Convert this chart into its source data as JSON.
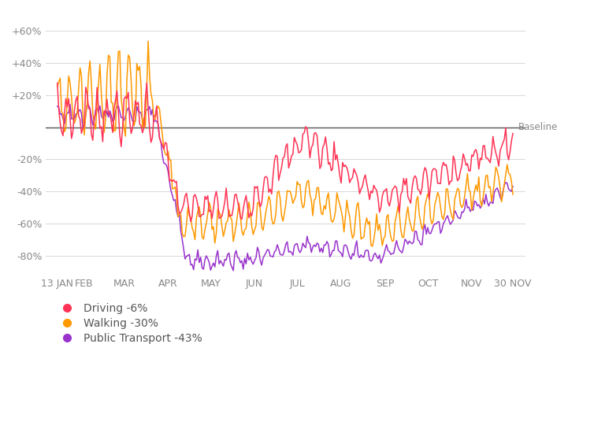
{
  "background_color": "#ffffff",
  "grid_color": "#d8d8d8",
  "baseline_color": "#555555",
  "driving_color": "#ff3355",
  "walking_color": "#ff9900",
  "transit_color": "#9933cc",
  "legend_driving": "Driving -6%",
  "legend_walking": "Walking -30%",
  "legend_transit": "Public Transport -43%",
  "baseline_label": "Baseline",
  "xlabels": [
    "13 JAN",
    "FEB",
    "MAR",
    "APR",
    "MAY",
    "JUN",
    "JUL",
    "AUG",
    "SEP",
    "OCT",
    "NOV",
    "30 NOV"
  ],
  "ylim": [
    -92,
    72
  ],
  "yticks": [
    60,
    40,
    20,
    0,
    -20,
    -40,
    -60,
    -80
  ]
}
